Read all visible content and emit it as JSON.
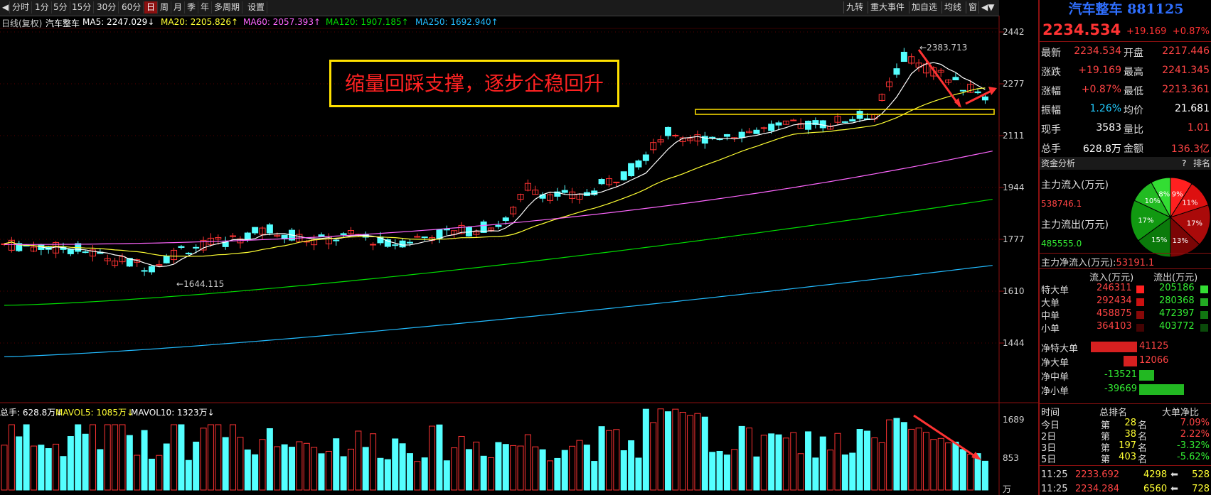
{
  "toolbar": {
    "tabs": [
      "分时",
      "1分",
      "5分",
      "15分",
      "30分",
      "60分",
      "日",
      "周",
      "月",
      "季",
      "年",
      "多周期",
      "设置"
    ],
    "active": "日",
    "right_tabs": [
      "九转",
      "重大事件",
      "加自选",
      "均线",
      "窗"
    ]
  },
  "info_line": {
    "prefix": "日线(复权)",
    "name": "汽车整车",
    "ma5": "MA5: 2247.029↓",
    "ma20": "MA20: 2205.826↑",
    "ma60": "MA60: 2057.393↑",
    "ma120": "MA120: 1907.185↑",
    "ma250": "MA250: 1692.940↑"
  },
  "vol_line": {
    "total": "总手: 628.8万↓",
    "mavol5": "MAVOL5: 1085万↓",
    "mavol10": "MAVOL10: 1323万↓"
  },
  "colors": {
    "ma5": "#ffffff",
    "ma20": "#ffff33",
    "ma60": "#ff66ff",
    "ma120": "#00dd00",
    "ma250": "#22bbff",
    "up": "#ff3333",
    "down": "#54ffff",
    "accent": "#8b1010"
  },
  "y_axis": [
    "2442",
    "2277",
    "2111",
    "1944",
    "1777",
    "1610",
    "1444"
  ],
  "vol_axis": [
    "1689",
    "853",
    "万"
  ],
  "peak_label": "2383.713",
  "low_label": "1644.115",
  "callout": "缩量回踩支撑，逐步企稳回升",
  "panel": {
    "title": "汽车整车 881125",
    "price": "2234.534",
    "change": "+19.169",
    "pct": "+0.87%",
    "quote_rows": [
      {
        "l1": "最新",
        "v1": "2234.534",
        "l2": "开盘",
        "v2": "2217.446"
      },
      {
        "l1": "涨跌",
        "v1": "+19.169",
        "l2": "最高",
        "v2": "2241.345"
      },
      {
        "l1": "涨幅",
        "v1": "+0.87%",
        "l2": "最低",
        "v2": "2213.361"
      },
      {
        "l1": "振幅",
        "v1": "1.26%",
        "l2": "均价",
        "v2": "21.681"
      },
      {
        "l1": "现手",
        "v1": "3583",
        "l2": "量比",
        "v2": "1.01"
      },
      {
        "l1": "总手",
        "v1": "628.8万",
        "l2": "金额",
        "v2": "136.3亿"
      }
    ],
    "fund_header": "资金分析",
    "fund_help": "?",
    "fund_rank": "排名",
    "main_in_label": "主力流入(万元)",
    "main_in": "538746.1",
    "main_out_label": "主力流出(万元)",
    "main_out": "485555.0",
    "net_label": "主力净流入(万元):",
    "net_value": "53191.1",
    "pie": [
      {
        "label": "9%",
        "value": 9,
        "color": "#ff2020"
      },
      {
        "label": "11%",
        "value": 11,
        "color": "#dd1010"
      },
      {
        "label": "17%",
        "value": 17,
        "color": "#aa0a0a"
      },
      {
        "label": "13%",
        "value": 13,
        "color": "#7a0505"
      },
      {
        "label": "15%",
        "value": 15,
        "color": "#0b7a0b"
      },
      {
        "label": "17%",
        "value": 17,
        "color": "#119911"
      },
      {
        "label": "10%",
        "value": 10,
        "color": "#22bb22"
      },
      {
        "label": "8%",
        "value": 8,
        "color": "#33dd33"
      }
    ],
    "flow_head": [
      "流入(万元)",
      "流出(万元)"
    ],
    "flow_rows": [
      {
        "name": "特大单",
        "in": "246311",
        "out": "205186"
      },
      {
        "name": "大单",
        "in": "292434",
        "out": "280368"
      },
      {
        "name": "中单",
        "in": "458875",
        "out": "472397"
      },
      {
        "name": "小单",
        "in": "364103",
        "out": "403772"
      }
    ],
    "net_rows": [
      {
        "name": "净特大单",
        "value": "41125",
        "amount": 41125
      },
      {
        "name": "净大单",
        "value": "12066",
        "amount": 12066
      },
      {
        "name": "净中单",
        "value": "-13521",
        "amount": -13521
      },
      {
        "name": "净小单",
        "value": "-39669",
        "amount": -39669
      }
    ],
    "rank_head": [
      "时间",
      "总排名",
      "大单净比"
    ],
    "rank_rows": [
      {
        "t": "今日",
        "p": "第",
        "n": "28",
        "s": "名",
        "r": "7.09%"
      },
      {
        "t": "2日",
        "p": "第",
        "n": "38",
        "s": "名",
        "r": "2.22%"
      },
      {
        "t": "3日",
        "p": "第",
        "n": "197",
        "s": "名",
        "r": "-3.32%"
      },
      {
        "t": "5日",
        "p": "第",
        "n": "403",
        "s": "名",
        "r": "-5.62%"
      }
    ],
    "ticks": [
      {
        "time": "11:25",
        "price": "2233.692",
        "vol": "4298",
        "side": "528"
      },
      {
        "time": "11:25",
        "price": "2234.284",
        "vol": "6560",
        "side": "728"
      }
    ]
  }
}
